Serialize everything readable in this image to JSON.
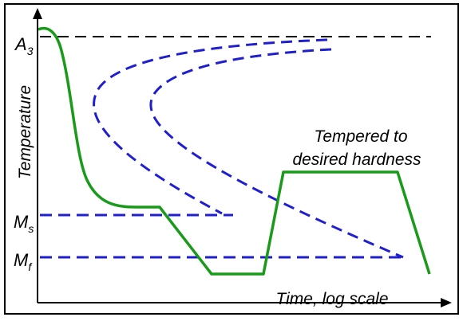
{
  "diagram": {
    "y_axis_label": "Temperature",
    "x_axis_label": "Time, log scale",
    "levels": {
      "a3": {
        "letter": "A",
        "sub": "3"
      },
      "ms": {
        "letter": "M",
        "sub": "s"
      },
      "mf": {
        "letter": "M",
        "sub": "f"
      }
    },
    "annotation": {
      "line1": "Tempered to",
      "line2": "desired hardness"
    },
    "colors": {
      "cooling_curve": "#1a9a1a",
      "transformation_curves": "#1f1fd0",
      "reference_lines": "#000000",
      "frame": "#000000"
    }
  }
}
